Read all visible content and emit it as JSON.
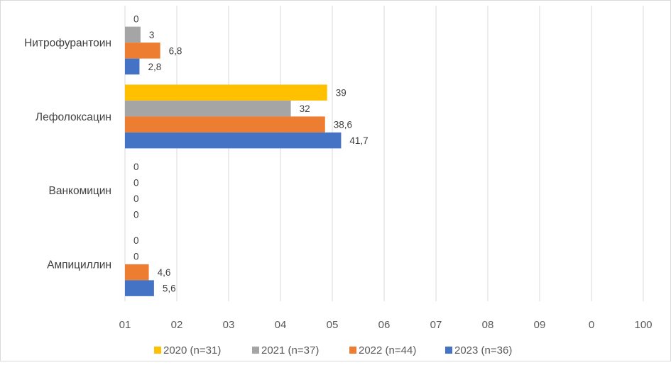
{
  "chart_data": {
    "type": "bar",
    "orientation": "horizontal",
    "categories": [
      "Нитрофурантоин",
      "Лефолоксацин",
      "Ванкомицин",
      "Ампициллин"
    ],
    "series": [
      {
        "name": "2020 (n=31)",
        "color": "#FFC000",
        "values": [
          0,
          39,
          0,
          0
        ],
        "labels": [
          "0",
          "39",
          "0",
          "0"
        ]
      },
      {
        "name": "2021 (n=37)",
        "color": "#A5A5A5",
        "values": [
          3,
          32,
          0,
          0
        ],
        "labels": [
          "3",
          "32",
          "0",
          "0"
        ]
      },
      {
        "name": "2022 (n=44)",
        "color": "#ED7D31",
        "values": [
          6.8,
          38.6,
          0,
          4.6
        ],
        "labels": [
          "6,8",
          "38,6",
          "0",
          "4,6"
        ]
      },
      {
        "name": "2023 (n=36)",
        "color": "#4472C4",
        "values": [
          2.8,
          41.7,
          0,
          5.6
        ],
        "labels": [
          "2,8",
          "41,7",
          "0",
          "5,6"
        ]
      }
    ],
    "x_tick_labels": [
      "01",
      "02",
      "03",
      "04",
      "05",
      "06",
      "07",
      "08",
      "09",
      "0",
      "100"
    ],
    "xlim": [
      0,
      100
    ],
    "grid": true,
    "legend_position": "bottom"
  }
}
